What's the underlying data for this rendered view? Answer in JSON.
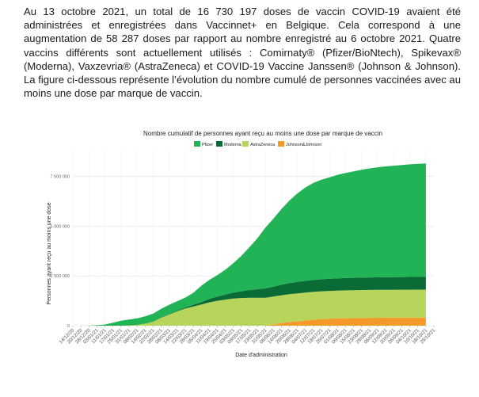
{
  "paragraph": "Au 13 octobre 2021, un total de 16 730 197 doses de vaccin COVID-19 avaient été administrées et enregistrées dans Vaccinnet+ en Belgique. Cela correspond à une augmentation de 58 287 doses par rapport au nombre enregistré au 6 octobre 2021. Quatre vaccins différents sont actuellement utilisés : Comirnaty® (Pfizer/BioNtech), Spikevax® (Moderna), Vaxzevria® (AstraZeneca) et COVID-19 Vaccine Janssen® (Johnson & Johnson). La figure ci-dessous représente l’évolution du nombre cumulé de personnes vaccinées avec au moins une dose par marque de vaccin.",
  "chart_data": {
    "type": "area",
    "stacked": true,
    "title": "Nombre cumulatif de personnes ayant reçu au moins une dose par marque de vaccin",
    "xlabel": "Date d'administration",
    "ylabel": "Personnes ayant reçu au moins une dose",
    "ylim": [
      0,
      8800000
    ],
    "yticks": [
      0,
      2500000,
      5000000,
      7500000
    ],
    "ytick_labels": [
      "0",
      "2 500 000",
      "5 000 000",
      "7 500 000"
    ],
    "legend_position": "top",
    "grid": true,
    "x_tick_labels": [
      "14/12/20",
      "28/12/20",
      "11/01/21",
      "25/01/21",
      "08/02/21",
      "22/02/21",
      "08/03/21",
      "22/03/21",
      "05/04/21",
      "19/04/21",
      "03/05/21",
      "17/05/21",
      "31/05/21",
      "14/06/21",
      "28/06/21",
      "12/07/21",
      "26/07/21",
      "09/08/21",
      "23/08/21",
      "06/09/21",
      "20/09/21",
      "04/10/21",
      "18/10/21",
      "20/12/20",
      "03/01/21",
      "17/01/21",
      "31/01/21",
      "14/02/21",
      "28/02/21",
      "14/03/21",
      "28/03/21",
      "11/04/21",
      "25/04/21",
      "09/05/21",
      "23/05/21",
      "06/06/21",
      "20/06/21",
      "04/07/21",
      "18/07/21",
      "01/08/21",
      "15/08/21",
      "29/08/21",
      "12/09/21",
      "26/09/21",
      "10/10/21",
      "25/10/21"
    ],
    "x_week_index": [
      0,
      2,
      4,
      6,
      8,
      10,
      12,
      14,
      16,
      18,
      20,
      22,
      24,
      26,
      28,
      30,
      32,
      34,
      36,
      38,
      40,
      42,
      44,
      1,
      3,
      5,
      7,
      9,
      11,
      13,
      15,
      17,
      19,
      21,
      23,
      25,
      27,
      29,
      31,
      33,
      35,
      37,
      39,
      41,
      43,
      45
    ],
    "x": [
      0,
      1,
      2,
      3,
      4,
      5,
      6,
      7,
      8,
      9,
      10,
      11,
      12,
      13,
      14,
      15,
      16,
      17,
      18,
      19,
      20,
      21,
      22,
      23,
      24,
      25,
      26,
      27,
      28,
      29,
      30,
      31,
      32,
      33,
      34,
      35,
      36,
      37,
      38,
      39,
      40,
      41,
      42,
      43,
      44
    ],
    "series": [
      {
        "name": "Johnson&Johnson",
        "color": "#f39a2b",
        "values": [
          0,
          0,
          0,
          0,
          0,
          0,
          0,
          0,
          0,
          0,
          0,
          0,
          0,
          0,
          0,
          0,
          0,
          0,
          0,
          0,
          0,
          0,
          0,
          0,
          5000,
          60000,
          130000,
          180000,
          220000,
          260000,
          300000,
          330000,
          350000,
          365000,
          375000,
          385000,
          390000,
          395000,
          400000,
          403000,
          405000,
          407000,
          409000,
          410000,
          411000
        ]
      },
      {
        "name": "AstraZeneca",
        "color": "#b6d55a",
        "values": [
          0,
          0,
          0,
          0,
          0,
          0,
          0,
          10000,
          40000,
          100000,
          200000,
          400000,
          560000,
          720000,
          860000,
          960000,
          1060000,
          1170000,
          1250000,
          1310000,
          1360000,
          1390000,
          1400000,
          1400000,
          1400000,
          1400000,
          1400000,
          1400000,
          1400000,
          1400000,
          1400000,
          1400000,
          1400000,
          1400000,
          1400000,
          1400000,
          1400000,
          1400000,
          1400000,
          1400000,
          1400000,
          1400000,
          1400000,
          1400000,
          1400000
        ]
      },
      {
        "name": "Moderna",
        "color": "#0b6b36",
        "values": [
          0,
          0,
          0,
          0,
          0,
          0,
          0,
          0,
          0,
          5000,
          10000,
          20000,
          30000,
          40000,
          50000,
          90000,
          120000,
          170000,
          210000,
          250000,
          300000,
          340000,
          390000,
          430000,
          470000,
          500000,
          530000,
          560000,
          580000,
          590000,
          600000,
          605000,
          610000,
          615000,
          620000,
          622000,
          625000,
          628000,
          630000,
          632000,
          634000,
          636000,
          638000,
          640000,
          642000
        ]
      },
      {
        "name": "Pfizer",
        "color": "#21b356",
        "values": [
          0,
          0,
          5000,
          25000,
          60000,
          150000,
          250000,
          300000,
          330000,
          360000,
          390000,
          430000,
          460000,
          470000,
          500000,
          600000,
          820000,
          960000,
          1080000,
          1250000,
          1480000,
          1780000,
          2150000,
          2560000,
          3050000,
          3420000,
          3800000,
          4150000,
          4450000,
          4700000,
          4880000,
          5000000,
          5100000,
          5200000,
          5280000,
          5350000,
          5420000,
          5480000,
          5530000,
          5570000,
          5600000,
          5630000,
          5660000,
          5680000,
          5700000
        ]
      }
    ]
  }
}
